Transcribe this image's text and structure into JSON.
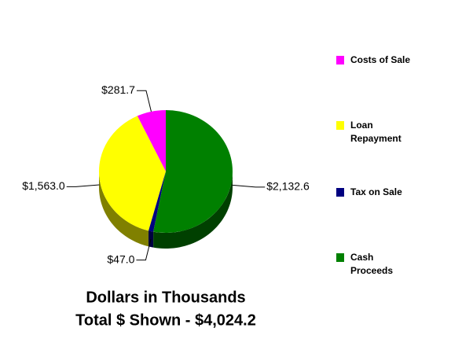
{
  "chart_data": {
    "type": "pie3d",
    "title": "Dollars in Thousands",
    "subtitle": "Total $ Shown - $4,024.2",
    "series": [
      {
        "name": "Costs of Sale",
        "color": "#ff00ff",
        "values": [
          281.7
        ],
        "value_labels": [
          "$281.7"
        ]
      },
      {
        "name": "Loan Repayment",
        "color": "#ffff00",
        "values": [
          1563.0
        ],
        "value_labels": [
          "$1,563.0"
        ]
      },
      {
        "name": "Tax on Sale",
        "color": "#000080",
        "values": [
          47.0
        ],
        "value_labels": [
          "$47.0"
        ]
      },
      {
        "name": "Cash Proceeds",
        "color": "#008000",
        "values": [
          2132.6
        ],
        "value_labels": [
          "$2,132.6"
        ]
      }
    ],
    "legend": "right"
  }
}
